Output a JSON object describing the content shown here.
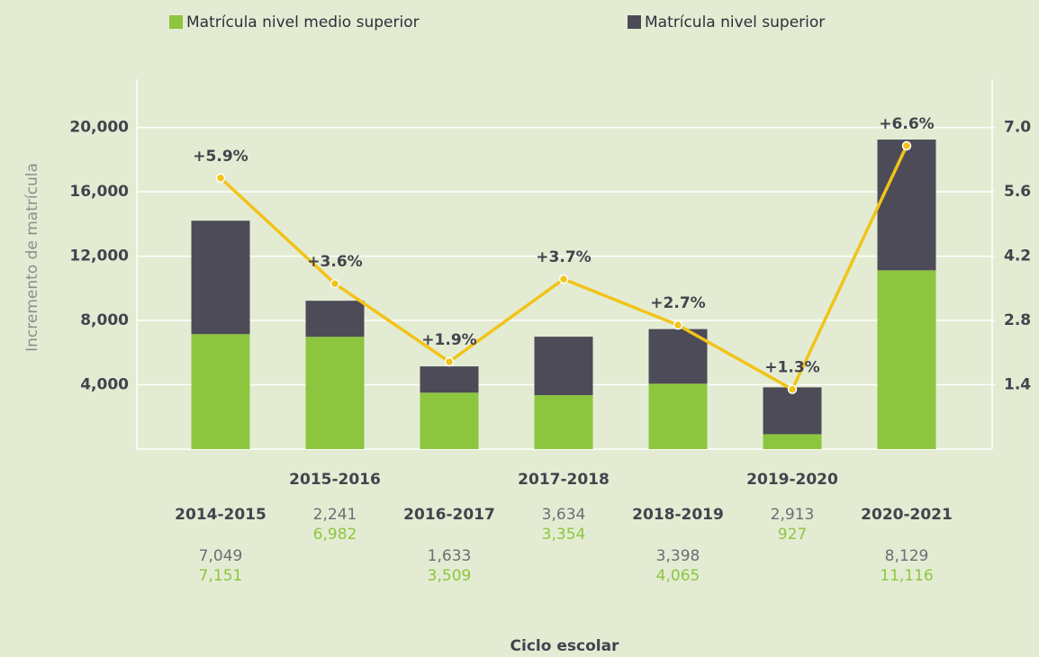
{
  "chart_data": {
    "type": "bar",
    "x_label": "Ciclo escolar",
    "y_label": "Incremento de matrícula",
    "categories": [
      "2014-2015",
      "2015-2016",
      "2016-2017",
      "2017-2018",
      "2018-2019",
      "2019-2020",
      "2020-2021"
    ],
    "series": [
      {
        "name": "Matrícula nivel medio superior",
        "color": "#8cc63f",
        "values": [
          7151,
          6982,
          3509,
          3354,
          4065,
          927,
          11116
        ],
        "value_labels": [
          "7,151",
          "6,982",
          "3,509",
          "3,354",
          "4,065",
          "927",
          "11,116"
        ]
      },
      {
        "name": "Matrícula nivel superior",
        "color": "#4d4b58",
        "values": [
          7049,
          2241,
          1633,
          3634,
          3398,
          2913,
          8129
        ],
        "value_labels": [
          "7,049",
          "2,241",
          "1,633",
          "3,634",
          "3,398",
          "2,913",
          "8,129"
        ]
      }
    ],
    "line": {
      "color": "#f2c318",
      "axis": "y2",
      "values": [
        5.9,
        3.6,
        1.9,
        3.7,
        2.7,
        1.3,
        6.6
      ],
      "value_labels": [
        "+5.9%",
        "+3.6%",
        "+1.9%",
        "+3.7%",
        "+2.7%",
        "+1.3%",
        "+6.6%"
      ]
    },
    "stacked": true,
    "ylim": [
      0,
      23000
    ],
    "yticks": [
      {
        "value": 4000,
        "label": "4,000"
      },
      {
        "value": 8000,
        "label": "8,000"
      },
      {
        "value": 12000,
        "label": "12,000"
      },
      {
        "value": 16000,
        "label": "16,000"
      },
      {
        "value": 20000,
        "label": "20,000"
      }
    ],
    "y2lim": [
      0,
      8.05
    ],
    "y2ticks": [
      1.4,
      2.8,
      4.2,
      5.6,
      {
        "value": 7,
        "label": "7.0"
      }
    ],
    "grid": true,
    "legend": "top"
  }
}
